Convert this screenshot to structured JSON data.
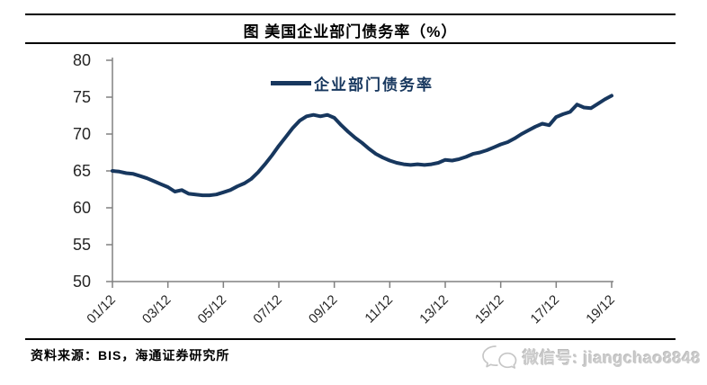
{
  "header": {
    "title": "图 美国企业部门债务率（%）"
  },
  "legend": {
    "label": "企业部门债务率"
  },
  "footer": {
    "source": "资料来源：BIS，海通证券研究所"
  },
  "watermark": {
    "icon": "wechat-icon",
    "text": "微信号: jiangchao8848"
  },
  "colors": {
    "line": "#17375e",
    "axis": "#808080",
    "tick_label": "#262626",
    "title": "#000000",
    "watermark": "#c6c6c6"
  },
  "chart_data": {
    "type": "line",
    "title": "图 美国企业部门债务率（%）",
    "xlabel": "",
    "ylabel": "",
    "legend_position": "top-center",
    "grid": false,
    "frequency": "quarterly",
    "series": [
      {
        "name": "企业部门债务率",
        "values": [
          65.0,
          64.9,
          64.7,
          64.6,
          64.3,
          64.0,
          63.6,
          63.2,
          62.8,
          62.2,
          62.4,
          61.9,
          61.8,
          61.7,
          61.7,
          61.8,
          62.1,
          62.4,
          62.9,
          63.3,
          63.9,
          64.8,
          65.9,
          67.1,
          68.4,
          69.6,
          70.8,
          71.8,
          72.4,
          72.6,
          72.4,
          72.6,
          72.2,
          71.2,
          70.3,
          69.5,
          68.8,
          68.0,
          67.3,
          66.8,
          66.4,
          66.1,
          65.9,
          65.8,
          65.9,
          65.8,
          65.9,
          66.1,
          66.5,
          66.4,
          66.6,
          66.9,
          67.3,
          67.5,
          67.8,
          68.2,
          68.6,
          68.9,
          69.4,
          70.0,
          70.5,
          71.0,
          71.4,
          71.2,
          72.3,
          72.7,
          73.0,
          74.0,
          73.6,
          73.5,
          74.1,
          74.7,
          75.2
        ]
      }
    ],
    "xtick_labels": [
      "01/12",
      "03/12",
      "05/12",
      "07/12",
      "09/12",
      "11/12",
      "13/12",
      "15/12",
      "17/12",
      "19/12"
    ],
    "xtick_indices": [
      0,
      8,
      16,
      24,
      32,
      40,
      48,
      56,
      64,
      72
    ],
    "yticks": [
      50,
      55,
      60,
      65,
      70,
      75,
      80
    ],
    "ylim": [
      50,
      80
    ]
  }
}
